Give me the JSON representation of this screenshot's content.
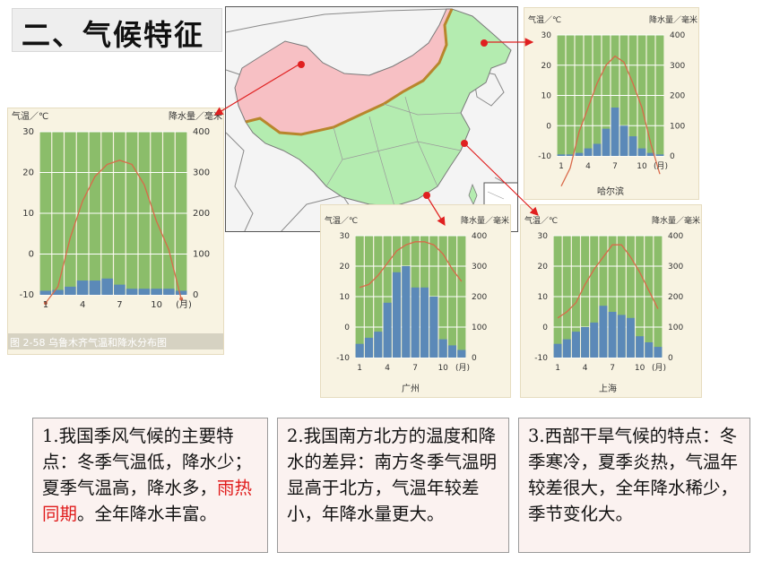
{
  "title": "二、气候特征",
  "colors": {
    "bar_green": "#8bbd6a",
    "bar_blue": "#5b89b8",
    "temp_line": "#d96a4a",
    "map_north": "#f7c0c4",
    "map_monsoon": "#b4ecb0",
    "arrow": "#e02020",
    "emphasis": "#e01b1b"
  },
  "charts": [
    {
      "id": "urumqi",
      "left_label": "气温／℃",
      "right_label": "降水量／毫米",
      "temp_ticks": [
        "30",
        "20",
        "10",
        "0",
        "-10"
      ],
      "precip_ticks": [
        "400",
        "300",
        "200",
        "100",
        "0"
      ],
      "month_ticks": [
        "1",
        "4",
        "7",
        "10",
        "(月)"
      ],
      "caption": "图 2-58  乌鲁木齐气温和降水分布图"
    },
    {
      "id": "harbin",
      "left_label": "气温／℃",
      "right_label": "降水量／毫米",
      "temp_ticks": [
        "30",
        "20",
        "10",
        "0",
        "-10"
      ],
      "precip_ticks": [
        "400",
        "300",
        "200",
        "100",
        "0"
      ],
      "month_ticks": [
        "1",
        "4",
        "7",
        "10",
        "(月)"
      ],
      "caption": "哈尔滨"
    },
    {
      "id": "guangzhou",
      "left_label": "气温／℃",
      "right_label": "降水量／毫米",
      "temp_ticks": [
        "30",
        "20",
        "10",
        "0",
        "-10"
      ],
      "precip_ticks": [
        "400",
        "300",
        "200",
        "100",
        "0"
      ],
      "month_ticks": [
        "1",
        "4",
        "7",
        "10",
        "(月)"
      ],
      "caption": "广州"
    },
    {
      "id": "shanghai",
      "left_label": "气温／℃",
      "right_label": "降水量／毫米",
      "temp_ticks": [
        "30",
        "20",
        "10",
        "0",
        "-10"
      ],
      "precip_ticks": [
        "400",
        "300",
        "200",
        "100",
        "0"
      ],
      "month_ticks": [
        "1",
        "4",
        "7",
        "10",
        "(月)"
      ],
      "caption": "上海"
    }
  ],
  "chart_data": [
    {
      "type": "bar",
      "title": "乌鲁木齐气温和降水分布图",
      "xlabel": "(月)",
      "ylabel": "气温／℃",
      "categories": [
        "1",
        "2",
        "3",
        "4",
        "5",
        "6",
        "7",
        "8",
        "9",
        "10",
        "11",
        "12"
      ],
      "temp_range": [
        -10,
        30
      ],
      "precip_range": [
        0,
        400
      ],
      "series": [
        {
          "name": "降水量",
          "values": [
            10,
            12,
            20,
            35,
            35,
            40,
            25,
            15,
            15,
            15,
            15,
            10
          ]
        },
        {
          "name": "气温",
          "values": [
            -12,
            -8,
            4,
            13,
            19,
            22,
            23,
            22,
            17,
            8,
            1,
            -11
          ]
        }
      ]
    },
    {
      "type": "bar",
      "title": "哈尔滨",
      "xlabel": "(月)",
      "categories": [
        "1",
        "2",
        "3",
        "4",
        "5",
        "6",
        "7",
        "8",
        "9",
        "10",
        "11",
        "12"
      ],
      "temp_range": [
        -10,
        30
      ],
      "precip_range": [
        0,
        400
      ],
      "series": [
        {
          "name": "降水量",
          "values": [
            5,
            5,
            10,
            25,
            40,
            90,
            160,
            100,
            65,
            25,
            10,
            5
          ]
        },
        {
          "name": "气温",
          "values": [
            -20,
            -14,
            -2,
            6,
            14,
            20,
            23,
            21,
            14,
            6,
            -6,
            -16
          ]
        }
      ]
    },
    {
      "type": "bar",
      "title": "广州",
      "xlabel": "(月)",
      "categories": [
        "1",
        "2",
        "3",
        "4",
        "5",
        "6",
        "7",
        "8",
        "9",
        "10",
        "11",
        "12"
      ],
      "temp_range": [
        -10,
        30
      ],
      "precip_range": [
        0,
        400
      ],
      "series": [
        {
          "name": "降水量",
          "values": [
            45,
            65,
            85,
            180,
            280,
            300,
            230,
            230,
            200,
            60,
            40,
            25
          ]
        },
        {
          "name": "气温",
          "values": [
            13,
            14,
            17,
            21,
            25,
            27,
            28,
            28,
            27,
            24,
            19,
            15
          ]
        }
      ]
    },
    {
      "type": "bar",
      "title": "上海",
      "xlabel": "(月)",
      "categories": [
        "1",
        "2",
        "3",
        "4",
        "5",
        "6",
        "7",
        "8",
        "9",
        "10",
        "11",
        "12"
      ],
      "temp_range": [
        -10,
        30
      ],
      "precip_range": [
        0,
        400
      ],
      "series": [
        {
          "name": "降水量",
          "values": [
            45,
            60,
            85,
            100,
            115,
            170,
            150,
            140,
            130,
            70,
            50,
            35
          ]
        },
        {
          "name": "气温",
          "values": [
            3,
            5,
            8,
            14,
            19,
            23,
            27,
            27,
            23,
            18,
            12,
            6
          ]
        }
      ]
    }
  ],
  "notes": {
    "n1_a": "1.我国季风气候的主要特点：冬季气温低，降水少；夏季气温高，降水多，",
    "n1_em": "雨热同期",
    "n1_b": "。全年降水丰富。",
    "n2": "2.我国南方北方的温度和降水的差异：南方冬季气温明显高于北方，气温年较差小，年降水量更大。",
    "n3": "3.西部干旱气候的特点：冬季寒冷，夏季炎热，气温年较差很大，全年降水稀少，季节变化大。"
  }
}
